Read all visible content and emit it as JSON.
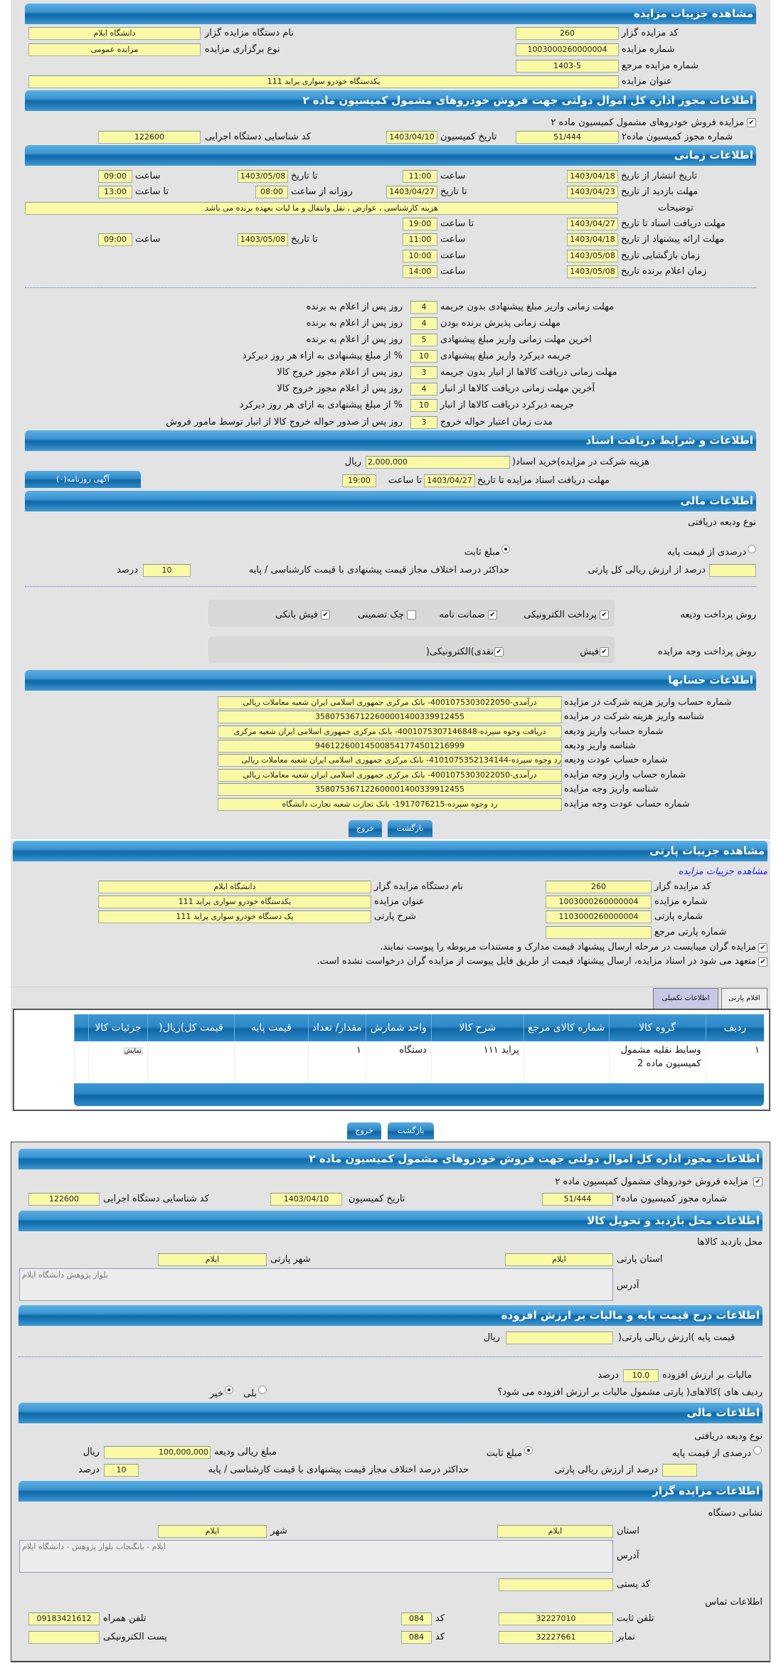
{
  "auction": {
    "title": "مشاهده جزییات مزایده",
    "code_label": "کد مزایده گزار",
    "code": "260",
    "org_label": "نام دستگاه مزایده گزار",
    "org": "دانشگاه ایلام",
    "number_label": "شماره مزایده",
    "number": "1003000260000004",
    "type_label": "نوع برگزاری مزایده",
    "type": "مزایده عمومی",
    "ref_label": "شماره مزایده مرجع",
    "ref": "1403-5",
    "subject_label": "عنوان مزایده",
    "subject": "یکدستگاه  خودرو سواری  پراید 111"
  },
  "permit": {
    "title": "اطلاعات مجوز اداره کل اموال دولتی جهت فروش خودروهای مشمول کمیسیون ماده ۲",
    "checkbox_label": "مزایده فروش خودروهای مشمول کمیسیون ماده ۲",
    "checked": true,
    "permit_no_label": "شماره مجوز کمیسیون ماده۲",
    "permit_no": "51/444",
    "date_label": "تاریخ کمیسیون",
    "date": "1403/04/10",
    "exec_code_label": "کد شناسایی دستگاه اجرایی",
    "exec_code": "122600"
  },
  "timing": {
    "title": "اطلاعات زمانی",
    "r1": {
      "label": "تاریخ انتشار  از تاریخ",
      "from": "1403/04/18",
      "time_label": "ساعت",
      "time": "11:00",
      "to_label": "تا تاریخ",
      "to": "1403/05/08",
      "time2_label": "ساعت",
      "time2": "09:00"
    },
    "r2": {
      "label": "مهلت بازدید  از تاریخ",
      "from": "1403/04/23",
      "to_label": "تا تاریخ",
      "to": "1403/04/27",
      "daily_label": "روزانه از ساعت",
      "daily": "08:00",
      "until_label": "تا ساعت",
      "until": "13:00"
    },
    "desc_label": "توضیحات",
    "desc": "هزینه کارشناسی ، عوارض ، نقل وانتقال و ما لیات بعهده برنده  می باشد",
    "r4": {
      "label": "مهلت دریافت اسناد  تا تاریخ",
      "date": "1403/04/27",
      "time_label": "تا ساعت",
      "time": "19:00"
    },
    "r5": {
      "label": "مهلت ارائه پیشنهاد  از تاریخ",
      "from": "1403/04/18",
      "time_label": "ساعت",
      "time": "11:00",
      "to_label": "تا تاریخ",
      "to": "1403/05/08",
      "time2_label": "ساعت",
      "time2": "09:00"
    },
    "r6": {
      "label": "زمان بازگشایی    تاریخ",
      "date": "1403/05/08",
      "time_label": "ساعت",
      "time": "10:00"
    },
    "r7": {
      "label": "زمان اعلام برنده   تاریخ",
      "date": "1403/05/08",
      "time_label": "ساعت",
      "time": "14:00"
    }
  },
  "penalties": [
    {
      "label": "مهلت زمانی واریز مبلغ پیشنهادی بدون جریمه",
      "value": "4",
      "suffix": "روز پس از اعلام به برنده"
    },
    {
      "label": "مهلت زمانی پذیرش برنده بودن",
      "value": "4",
      "suffix": "روز پس از اعلام به برنده"
    },
    {
      "label": "اخرین مهلت زمانی واریز مبلغ پیشنهادی",
      "value": "5",
      "suffix": "روز پس از اعلام به برنده"
    },
    {
      "label": "جریمه دیرکرد واریز مبلغ پیشنهادی",
      "value": "10",
      "suffix": "% از مبلغ پیشنهادی به ازاء هر روز دیرکرد"
    },
    {
      "label": "مهلت زمانی دریافت کالاها از انبار بدون جریمه",
      "value": "3",
      "suffix": "روز پس از اعلام مجوز خروج کالا"
    },
    {
      "label": "آخرین مهلت زمانی دریافت کالاها از انبار",
      "value": "4",
      "suffix": "روز پس از اعلام مجوز خروج کالا"
    },
    {
      "label": "جریمه دیرکرد دریافت کالاها از انبار",
      "value": "10",
      "suffix": "% از مبلغ پیشنهادی به ازای هر روز دیرکرد"
    },
    {
      "label": "مدت زمان اعتبار حواله خروج",
      "value": "3",
      "suffix": "روز پس از صدور حواله خروج کالا از انبار توسط مامور فروش"
    }
  ],
  "documents": {
    "title": "اطلاعات و شرایط دریافت اسناد",
    "fee_label": "هزینه شرکت در مزایده)خرید اسناد(",
    "fee": "2,000,000",
    "currency": "ریال",
    "deadline_label": "مهلت دریافت اسناد مزایده تا تاریخ",
    "deadline_date": "1403/04/27",
    "time_label": "تا ساعت",
    "deadline_time": "19:00",
    "ads_button": "آگهی روزنامه(۰)"
  },
  "finance": {
    "title": "اطلاعات مالی",
    "deposit_type_label": "نوع ودیعه دریافتی",
    "opt_percent": "درصدی از قیمت پایه",
    "opt_fixed": "مبلغ ثابت",
    "selected": "مبلغ ثابت",
    "percent_label": "درصد از ارزش ریالی کل پارتی",
    "percent": "",
    "max_diff_label": "حداکثر درصد اختلاف مجاز قیمت پیشنهادی با قیمت کارشناسی / پایه",
    "max_diff": "10",
    "percent_unit": "درصد",
    "deposit_methods_label": "روش پرداخت ودیعه",
    "deposit_methods": [
      {
        "label": "پرداخت الکترونیکی",
        "checked": true
      },
      {
        "label": "ضمانت نامه",
        "checked": true
      },
      {
        "label": "چک تضمینی",
        "checked": false
      },
      {
        "label": "فیش بانکی",
        "checked": true
      }
    ],
    "payment_methods_label": "روش پرداخت وجه مزایده",
    "payment_methods": [
      {
        "label": "فیش",
        "checked": true
      },
      {
        "label": "نقدی)الکترونیکی(",
        "checked": true
      }
    ]
  },
  "accounts": {
    "title": "اطلاعات حسابها",
    "rows": [
      {
        "label": "شماره حساب واریز هزینه شرکت در مزایده",
        "value": "درآمدی-4001075303022050- بانک مرکزی جمهوری اسلامی ایران شعبه معاملات ریالی"
      },
      {
        "label": "شناسه واریز هزینه شرکت در مزایده",
        "value": "358075367122600001400339912455"
      },
      {
        "label": "شماره حساب واریز ودیعه",
        "value": "دریافت وجوه سپرده-4001075307146848- بانک مرکزی جمهوری اسلامی ایران شعبه مرکزی"
      },
      {
        "label": "شناسه واریز ودیعه",
        "value": "946122600145008541774501216999"
      },
      {
        "label": "شماره حساب عودت ودیعه",
        "value": "رد وجوه سپرده-4101075352134144- بانک مرکزی جمهوری اسلامی ایران شعبه معاملات ریالی"
      },
      {
        "label": "شماره حساب واریز وجه مزایده",
        "value": "درآمدی-4001075303022050- بانک مرکزی جمهوری اسلامی ایران شعبه معاملات ریالی"
      },
      {
        "label": "شناسه واریز وجه مزایده",
        "value": "358075367122600001400339912455"
      },
      {
        "label": "شماره حساب عودت وجه مزایده",
        "value": "رد وجوه سپرده-1917076215- بانک تجارت شعبه تجارت دانشگاه"
      }
    ]
  },
  "buttons": {
    "back": "بازگشت",
    "exit": "خروج"
  },
  "lot": {
    "title": "مشاهده جزییات پارتی",
    "link": "مشاهده جزییات مزایده",
    "code_label": "کد مزایده گزار",
    "code": "260",
    "org_label": "نام دستگاه مزایده گزار",
    "org": "دانشگاه ایلام",
    "number_label": "شماره مزایده",
    "number": "1003000260000004",
    "subject_label": "عنوان مزایده",
    "subject": "یکدستگاه  خودرو سواری  پراید 111",
    "lot_no_label": "شماره پارتی",
    "lot_no": "1103000260000004",
    "lot_desc_label": "شرح پارتی",
    "lot_desc": "یک دستگاه خودرو سواری پراید 111",
    "lot_ref_label": "شماره پارتی مرجع",
    "lot_ref": "",
    "check1": "مزایده گران میبایست در مرحله ارسال پیشنهاد قیمت مدارک و مستندات مربوطه را پیوست نمایند.",
    "check2": "متعهد می شود در اسناد مزایده، ارسال پیشنهاد قیمت از طریق فایل پیوست از مزایده گران درخواست نشده است.",
    "tabs": [
      "اقلام پارتی",
      "اطلاعات تکمیلی"
    ],
    "table": {
      "headers": [
        "ردیف",
        "گروه کالا",
        "شماره کالای مرجع",
        "شرح کالا",
        "واحد شمارش",
        "مقدار/ تعداد",
        "قیمت پایه",
        "قیمت کل)ریال(",
        "جزئیات کالا"
      ],
      "rows": [
        {
          "row": "۱",
          "group": "وسایط نقلیه مشمول کمیسیون ماده 2",
          "ref": "",
          "desc": "پراید ۱۱۱",
          "unit": "دستگاه",
          "qty": "۱",
          "base": "",
          "total": "",
          "details": "نمایش"
        }
      ]
    }
  },
  "extra": {
    "permit_title": "اطلاعات مجوز اداره کل اموال دولتی جهت فروش خودروهای مشمول کمیسیون ماده ۲",
    "visit_title": "اطلاعات محل بازدید و تحویل کالا",
    "visit_place_label": "محل بازدید کالاها",
    "province_label": "استان پارتی",
    "province": "ایلام",
    "city_label": "شهر پارتی",
    "city": "ایلام",
    "address_label": "آدرس",
    "address": "بلوار پژوهش دانشگاه ایلام",
    "price_title": "اطلاعات درج قیمت پایه و مالیات بر ارزش افزوده",
    "base_price_label": "قیمت پایه )ارزش ریالی پارتی(",
    "base_price": "",
    "currency": "ریال",
    "vat_label": "مالیات بر ارزش افزوده",
    "vat": "10.0",
    "vat_unit": "درصد",
    "vat_q": "ردیف های )کالاهای( پارتی مشمول مالیات بر ارزش افزوده می شود؟",
    "yes": "بلی",
    "no": "خیر",
    "vat_answer": "خیر",
    "fin_title": "اطلاعات مالی",
    "deposit_type_label": "نوع ودیعه دریافتی",
    "opt_percent": "درصدی از قیمت پایه",
    "opt_fixed": "مبلغ ثابت",
    "deposit_amount_label": "مبلغ ریالی ودیعه",
    "deposit_amount": "100,000,000",
    "percent_label": "درصد از ارزش ریالی پارتی",
    "percent": "",
    "max_diff_label": "حداکثر درصد اختلاف مجاز قیمت پیشنهادی با قیمت کارشناسی / پایه",
    "max_diff": "10",
    "percent_unit": "درصد",
    "seller_title": "اطلاعات مزایده گزار",
    "org_address_label": "نشانی دستگاه",
    "org_province_label": "استان",
    "org_province": "ایلام",
    "org_city_label": "شهر",
    "org_city": "ایلام",
    "org_address": "ایلام - بانگنجاب بلوار پژوهش - دانشگاه ایلام",
    "postal_label": "کد پستی",
    "postal": "",
    "contact_label": "اطلاعات تماس",
    "phone_label": "تلفن ثابت",
    "phone": "32227010",
    "code_label": "کد",
    "phone_code": "084",
    "mobile_label": "تلفن همراه",
    "mobile": "09183421612",
    "fax_label": "نمابر",
    "fax": "32227661",
    "fax_code": "084",
    "email_label": "پست الکترونیکی",
    "email": ""
  },
  "colors": {
    "header": "#1d77b6",
    "input_bg": "#fafaa6",
    "panel_bg": "#e3e3e3",
    "link": "#1a1aff"
  }
}
